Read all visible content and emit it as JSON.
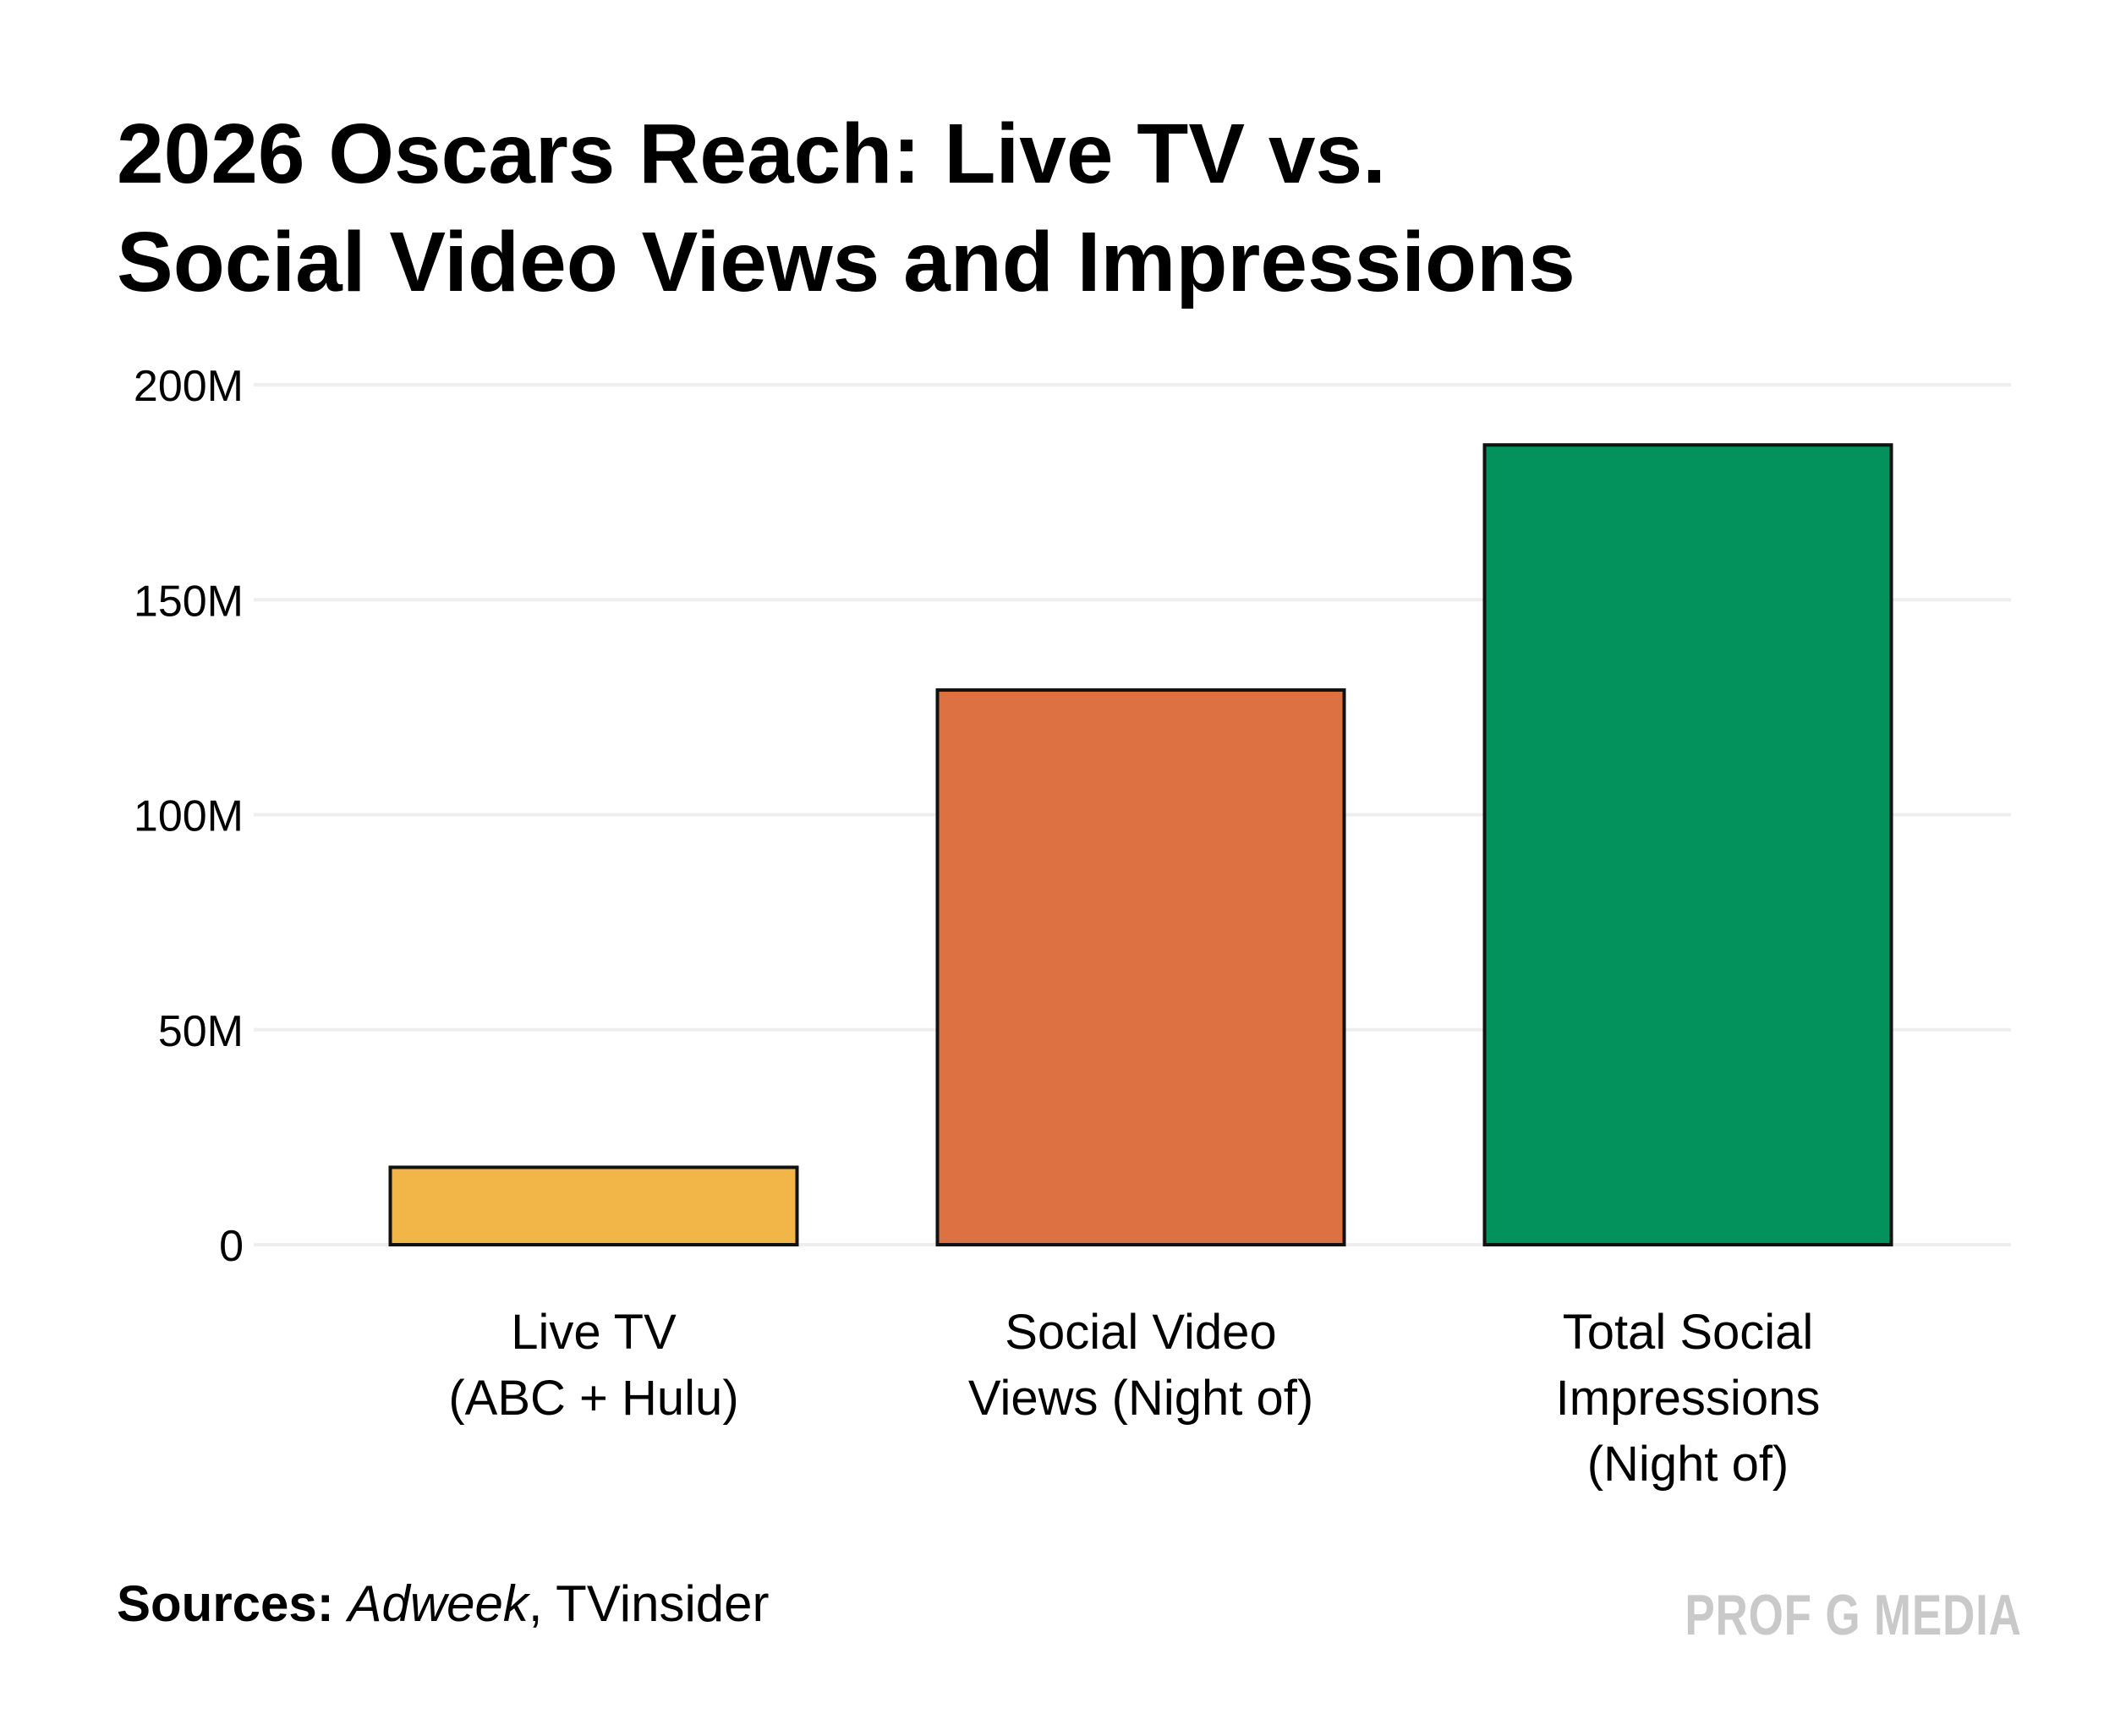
{
  "title_lines": [
    "2026 Oscars Reach: Live TV vs.",
    "Social Video Views and Impressions"
  ],
  "footer": {
    "sources_label": "Sources:",
    "source_italic": "Adweek",
    "source_rest": ", TVinsider",
    "brand": "PROF G MEDIA"
  },
  "colors": {
    "live_tv": "#F2B547",
    "social_video": "#DE7142",
    "total_social": "#03915C",
    "gridline": "#EEEEEE",
    "bar_outline": "#111111",
    "brand": "#C9C9C9"
  },
  "chart_data": {
    "type": "bar",
    "title": "2026 Oscars Reach: Live TV vs. Social Video Views and Impressions",
    "categories": [
      [
        "Live TV",
        "(ABC + Hulu)"
      ],
      [
        "Social Video",
        "Views (Night of)"
      ],
      [
        "Total Social",
        "Impressions",
        "(Night of)"
      ]
    ],
    "values": [
      18000000,
      129000000,
      186000000
    ],
    "bar_colors": [
      "#F2B547",
      "#DE7142",
      "#03915C"
    ],
    "ylim": [
      0,
      200000000
    ],
    "yticks": [
      0,
      50000000,
      100000000,
      150000000,
      200000000
    ],
    "ytick_labels": [
      "0",
      "50M",
      "100M",
      "150M",
      "200M"
    ],
    "xlabel": "",
    "ylabel": "",
    "grid": true,
    "legend": "none"
  }
}
